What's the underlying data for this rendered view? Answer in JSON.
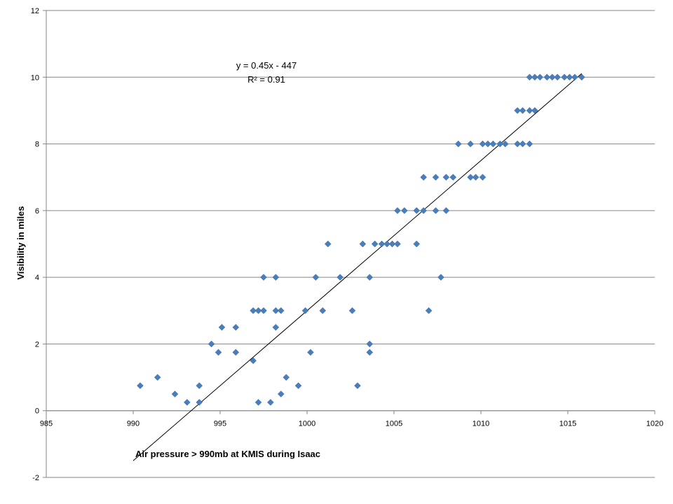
{
  "chart_data": {
    "type": "scatter",
    "title": "",
    "xlabel": "Air pressure > 990mb at KMIS during Isaac",
    "ylabel": "Visibility in miles",
    "xlim": [
      985,
      1020
    ],
    "ylim": [
      -2,
      12
    ],
    "xticks": [
      "985",
      "990",
      "995",
      "1000",
      "1005",
      "1010",
      "1015",
      "1020"
    ],
    "yticks": [
      "-2",
      "0",
      "2",
      "4",
      "6",
      "8",
      "10",
      "12"
    ],
    "grid": "horizontal",
    "legend": "none",
    "marker_color": "#4a7ebb",
    "trendline": {
      "equation": "y = 0.45x - 447",
      "r_squared": "R² = 0.91",
      "x_range": [
        990.0,
        1015.8
      ],
      "color": "#000000"
    },
    "points": [
      [
        990.4,
        0.75
      ],
      [
        991.4,
        1.0
      ],
      [
        992.4,
        0.5
      ],
      [
        993.1,
        0.25
      ],
      [
        993.8,
        0.75
      ],
      [
        993.8,
        0.25
      ],
      [
        994.5,
        2.0
      ],
      [
        994.9,
        1.75
      ],
      [
        995.1,
        2.5
      ],
      [
        995.9,
        2.5
      ],
      [
        995.9,
        1.75
      ],
      [
        996.9,
        3.0
      ],
      [
        996.9,
        1.5
      ],
      [
        997.2,
        3.0
      ],
      [
        997.2,
        0.25
      ],
      [
        997.5,
        4.0
      ],
      [
        997.5,
        3.0
      ],
      [
        997.9,
        0.25
      ],
      [
        998.2,
        4.0
      ],
      [
        998.2,
        3.0
      ],
      [
        998.2,
        2.5
      ],
      [
        998.5,
        3.0
      ],
      [
        998.5,
        0.5
      ],
      [
        998.8,
        1.0
      ],
      [
        999.5,
        0.75
      ],
      [
        999.9,
        3.0
      ],
      [
        1000.2,
        1.75
      ],
      [
        1000.5,
        4.0
      ],
      [
        1000.9,
        3.0
      ],
      [
        1001.2,
        5.0
      ],
      [
        1001.9,
        4.0
      ],
      [
        1002.6,
        3.0
      ],
      [
        1002.9,
        0.75
      ],
      [
        1003.2,
        5.0
      ],
      [
        1003.6,
        4.0
      ],
      [
        1003.6,
        2.0
      ],
      [
        1003.6,
        1.75
      ],
      [
        1003.9,
        5.0
      ],
      [
        1004.3,
        5.0
      ],
      [
        1004.6,
        5.0
      ],
      [
        1004.9,
        5.0
      ],
      [
        1005.2,
        5.0
      ],
      [
        1005.2,
        6.0
      ],
      [
        1005.6,
        6.0
      ],
      [
        1006.3,
        6.0
      ],
      [
        1006.3,
        5.0
      ],
      [
        1006.7,
        7.0
      ],
      [
        1006.7,
        6.0
      ],
      [
        1007.0,
        3.0
      ],
      [
        1007.4,
        7.0
      ],
      [
        1007.4,
        6.0
      ],
      [
        1007.7,
        4.0
      ],
      [
        1008.0,
        7.0
      ],
      [
        1008.0,
        6.0
      ],
      [
        1008.4,
        7.0
      ],
      [
        1008.7,
        8.0
      ],
      [
        1009.4,
        8.0
      ],
      [
        1009.4,
        7.0
      ],
      [
        1009.7,
        7.0
      ],
      [
        1010.1,
        8.0
      ],
      [
        1010.1,
        7.0
      ],
      [
        1010.4,
        8.0
      ],
      [
        1010.7,
        8.0
      ],
      [
        1011.1,
        8.0
      ],
      [
        1011.4,
        8.0
      ],
      [
        1012.1,
        9.0
      ],
      [
        1012.1,
        8.0
      ],
      [
        1012.4,
        9.0
      ],
      [
        1012.4,
        8.0
      ],
      [
        1012.8,
        9.0
      ],
      [
        1012.8,
        8.0
      ],
      [
        1012.8,
        10.0
      ],
      [
        1013.1,
        10.0
      ],
      [
        1013.1,
        9.0
      ],
      [
        1013.4,
        10.0
      ],
      [
        1013.8,
        10.0
      ],
      [
        1014.1,
        10.0
      ],
      [
        1014.4,
        10.0
      ],
      [
        1014.8,
        10.0
      ],
      [
        1015.1,
        10.0
      ],
      [
        1015.4,
        10.0
      ],
      [
        1015.8,
        10.0
      ]
    ]
  }
}
